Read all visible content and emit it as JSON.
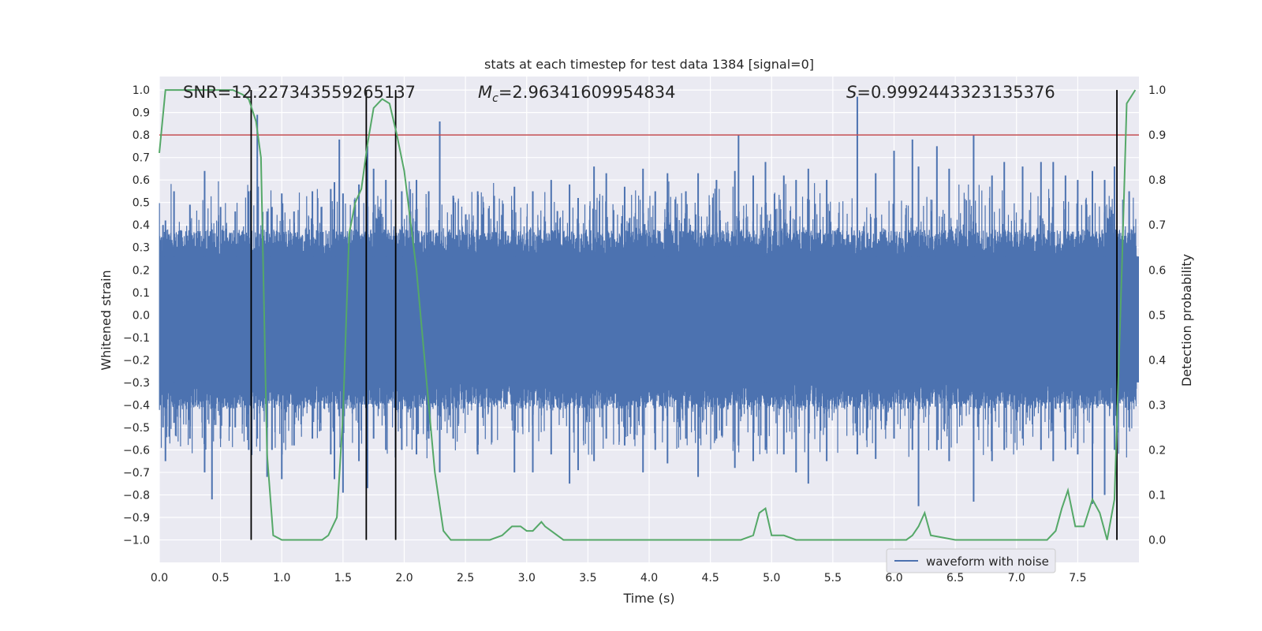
{
  "chart_data": {
    "type": "line",
    "title": "stats at each timestep for test data 1384 [signal=0]",
    "xlabel": "Time (s)",
    "ylabel_left": "Whitened strain",
    "ylabel_right": "Detection probability",
    "xlim": [
      0.0,
      8.0
    ],
    "ylim_left": [
      -1.1,
      1.06
    ],
    "ylim_right": [
      -0.05,
      1.03
    ],
    "xticks": [
      0.0,
      0.5,
      1.0,
      1.5,
      2.0,
      2.5,
      3.0,
      3.5,
      4.0,
      4.5,
      5.0,
      5.5,
      6.0,
      6.5,
      7.0,
      7.5
    ],
    "xtick_labels": [
      "0.0",
      "0.5",
      "1.0",
      "1.5",
      "2.0",
      "2.5",
      "3.0",
      "3.5",
      "4.0",
      "4.5",
      "5.0",
      "5.5",
      "6.0",
      "6.5",
      "7.0",
      "7.5"
    ],
    "yticks_left": [
      1.0,
      0.9,
      0.8,
      0.7,
      0.6,
      0.5,
      0.4,
      0.3,
      0.2,
      0.1,
      0.0,
      -0.1,
      -0.2,
      -0.3,
      -0.4,
      -0.5,
      -0.6,
      -0.7,
      -0.8,
      -0.9,
      -1.0
    ],
    "ytick_labels_left": [
      "1.0",
      "0.9",
      "0.8",
      "0.7",
      "0.6",
      "0.5",
      "0.4",
      "0.3",
      "0.2",
      "0.1",
      "0.0",
      "−0.1",
      "−0.2",
      "−0.3",
      "−0.4",
      "−0.5",
      "−0.6",
      "−0.7",
      "−0.8",
      "−0.9",
      "−1.0"
    ],
    "yticks_right": [
      1.0,
      0.9,
      0.8,
      0.7,
      0.6,
      0.5,
      0.4,
      0.3,
      0.2,
      0.1,
      0.0
    ],
    "ytick_labels_right": [
      "1.0",
      "0.9",
      "0.8",
      "0.7",
      "0.6",
      "0.5",
      "0.4",
      "0.3",
      "0.2",
      "0.1",
      "0.0"
    ],
    "annotations": {
      "snr": "SNR=12.227343559265137",
      "mc_symbol": "M",
      "mc_sub": "c",
      "mc_value": "=2.96341609954834",
      "s_symbol": "S",
      "s_value": "=0.9992443323135376"
    },
    "legend": {
      "label": "waveform with noise",
      "placement": "bottom-right"
    },
    "threshold": {
      "axis": "right",
      "value": 0.9,
      "color": "#c44e52"
    },
    "vlines": [
      0.75,
      1.69,
      1.93,
      7.82
    ],
    "waveform": {
      "name": "waveform with noise",
      "color": "#4c72b0",
      "envelope_note": "dense noise, approx. +/-0.35 body with spikes",
      "peaks": [
        [
          0.03,
          0.4,
          -0.5
        ],
        [
          0.05,
          0.42,
          -0.65
        ],
        [
          0.12,
          0.55,
          -0.48
        ],
        [
          0.25,
          0.49,
          -0.55
        ],
        [
          0.37,
          0.64,
          -0.7
        ],
        [
          0.43,
          0.38,
          -0.82
        ],
        [
          0.5,
          0.48,
          -0.55
        ],
        [
          0.62,
          0.46,
          -0.5
        ],
        [
          0.73,
          0.55,
          -0.6
        ],
        [
          0.8,
          0.89,
          -0.55
        ],
        [
          0.88,
          0.46,
          -0.72
        ],
        [
          0.92,
          0.48,
          -0.6
        ],
        [
          1.0,
          0.54,
          -0.73
        ],
        [
          1.1,
          0.46,
          -0.58
        ],
        [
          1.25,
          0.55,
          -0.55
        ],
        [
          1.4,
          0.56,
          -0.62
        ],
        [
          1.43,
          0.59,
          -0.73
        ],
        [
          1.47,
          0.78,
          -0.45
        ],
        [
          1.5,
          0.54,
          -0.79
        ],
        [
          1.63,
          0.58,
          -0.65
        ],
        [
          1.7,
          0.75,
          -0.77
        ],
        [
          1.75,
          0.65,
          -0.55
        ],
        [
          1.85,
          0.6,
          -0.6
        ],
        [
          1.98,
          0.55,
          -0.6
        ],
        [
          2.1,
          0.6,
          -0.62
        ],
        [
          2.2,
          0.55,
          -0.55
        ],
        [
          2.29,
          0.86,
          -0.7
        ],
        [
          2.4,
          0.53,
          -0.55
        ],
        [
          2.6,
          0.55,
          -0.62
        ],
        [
          2.9,
          0.57,
          -0.7
        ],
        [
          3.05,
          0.55,
          -0.7
        ],
        [
          3.2,
          0.6,
          -0.62
        ],
        [
          3.35,
          0.58,
          -0.75
        ],
        [
          3.42,
          0.52,
          -0.69
        ],
        [
          3.55,
          0.66,
          -0.65
        ],
        [
          3.65,
          0.63,
          -0.55
        ],
        [
          3.8,
          0.57,
          -0.58
        ],
        [
          3.95,
          0.65,
          -0.7
        ],
        [
          4.05,
          0.55,
          -0.6
        ],
        [
          4.15,
          0.63,
          -0.66
        ],
        [
          4.3,
          0.55,
          -0.55
        ],
        [
          4.4,
          0.63,
          -0.72
        ],
        [
          4.55,
          0.6,
          -0.55
        ],
        [
          4.7,
          0.64,
          -0.68
        ],
        [
          4.73,
          0.8,
          -0.58
        ],
        [
          4.85,
          0.62,
          -0.65
        ],
        [
          4.95,
          0.68,
          -0.6
        ],
        [
          5.1,
          0.62,
          -0.62
        ],
        [
          5.2,
          0.6,
          -0.7
        ],
        [
          5.3,
          0.65,
          -0.75
        ],
        [
          5.45,
          0.6,
          -0.65
        ],
        [
          5.7,
          0.97,
          -0.62
        ],
        [
          5.85,
          0.63,
          -0.64
        ],
        [
          6.0,
          0.73,
          -0.55
        ],
        [
          6.15,
          0.78,
          -0.6
        ],
        [
          6.2,
          0.66,
          -0.85
        ],
        [
          6.35,
          0.75,
          -0.6
        ],
        [
          6.45,
          0.65,
          -0.65
        ],
        [
          6.65,
          0.8,
          -0.83
        ],
        [
          6.8,
          0.62,
          -0.65
        ],
        [
          6.9,
          0.68,
          -0.6
        ],
        [
          7.05,
          0.66,
          -0.55
        ],
        [
          7.2,
          0.68,
          -0.6
        ],
        [
          7.3,
          0.68,
          -0.65
        ],
        [
          7.4,
          0.62,
          -0.6
        ],
        [
          7.5,
          0.6,
          -0.62
        ],
        [
          7.62,
          0.64,
          -0.84
        ],
        [
          7.72,
          0.6,
          -0.8
        ],
        [
          7.8,
          0.66,
          -0.6
        ],
        [
          7.92,
          0.55,
          -0.5
        ]
      ]
    },
    "probability": {
      "name": "detection probability",
      "color": "#55a868",
      "axis": "right",
      "points": [
        [
          0.0,
          0.86
        ],
        [
          0.05,
          1.0
        ],
        [
          0.1,
          1.0
        ],
        [
          0.2,
          1.0
        ],
        [
          0.3,
          1.0
        ],
        [
          0.4,
          1.0
        ],
        [
          0.5,
          1.0
        ],
        [
          0.6,
          1.0
        ],
        [
          0.68,
          0.99
        ],
        [
          0.73,
          0.98
        ],
        [
          0.79,
          0.93
        ],
        [
          0.83,
          0.85
        ],
        [
          0.88,
          0.19
        ],
        [
          0.93,
          0.01
        ],
        [
          1.0,
          0.0
        ],
        [
          1.2,
          0.0
        ],
        [
          1.33,
          0.0
        ],
        [
          1.38,
          0.01
        ],
        [
          1.45,
          0.05
        ],
        [
          1.5,
          0.28
        ],
        [
          1.55,
          0.68
        ],
        [
          1.6,
          0.75
        ],
        [
          1.65,
          0.78
        ],
        [
          1.7,
          0.88
        ],
        [
          1.75,
          0.96
        ],
        [
          1.82,
          0.98
        ],
        [
          1.88,
          0.97
        ],
        [
          1.94,
          0.9
        ],
        [
          2.0,
          0.82
        ],
        [
          2.1,
          0.6
        ],
        [
          2.2,
          0.3
        ],
        [
          2.25,
          0.15
        ],
        [
          2.32,
          0.02
        ],
        [
          2.38,
          0.0
        ],
        [
          2.5,
          0.0
        ],
        [
          2.7,
          0.0
        ],
        [
          2.8,
          0.01
        ],
        [
          2.88,
          0.03
        ],
        [
          2.95,
          0.03
        ],
        [
          3.0,
          0.02
        ],
        [
          3.05,
          0.02
        ],
        [
          3.12,
          0.04
        ],
        [
          3.15,
          0.03
        ],
        [
          3.2,
          0.02
        ],
        [
          3.3,
          0.0
        ],
        [
          3.5,
          0.0
        ],
        [
          3.8,
          0.0
        ],
        [
          4.0,
          0.0
        ],
        [
          4.5,
          0.0
        ],
        [
          4.75,
          0.0
        ],
        [
          4.85,
          0.01
        ],
        [
          4.9,
          0.06
        ],
        [
          4.95,
          0.07
        ],
        [
          5.0,
          0.01
        ],
        [
          5.1,
          0.01
        ],
        [
          5.2,
          0.0
        ],
        [
          5.5,
          0.0
        ],
        [
          6.1,
          0.0
        ],
        [
          6.15,
          0.01
        ],
        [
          6.2,
          0.03
        ],
        [
          6.25,
          0.06
        ],
        [
          6.3,
          0.01
        ],
        [
          6.5,
          0.0
        ],
        [
          7.0,
          0.0
        ],
        [
          7.25,
          0.0
        ],
        [
          7.32,
          0.02
        ],
        [
          7.37,
          0.07
        ],
        [
          7.42,
          0.11
        ],
        [
          7.48,
          0.03
        ],
        [
          7.55,
          0.03
        ],
        [
          7.62,
          0.09
        ],
        [
          7.68,
          0.06
        ],
        [
          7.74,
          0.0
        ],
        [
          7.8,
          0.09
        ],
        [
          7.86,
          0.6
        ],
        [
          7.9,
          0.97
        ],
        [
          7.97,
          1.0
        ]
      ]
    }
  }
}
